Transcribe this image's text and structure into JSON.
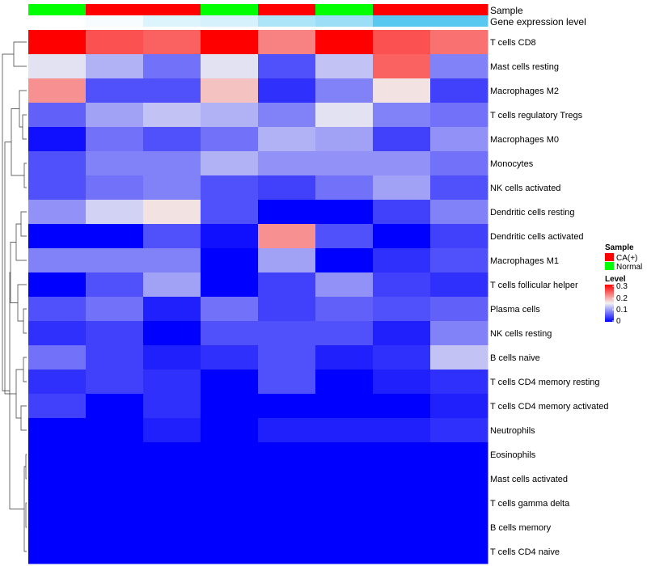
{
  "chart_data": {
    "type": "heatmap",
    "title": "",
    "columns": 8,
    "rows": [
      "T cells CD8",
      "Mast cells resting",
      "Macrophages M2",
      "T cells regulatory  Tregs",
      "Macrophages M0",
      "Monocytes",
      "NK cells activated",
      "Dendritic cells resting",
      "Dendritic cells activated",
      "Macrophages M1",
      "T cells follicular helper",
      "Plasma cells",
      "NK cells resting",
      "B cells naive",
      "T cells CD4 memory resting",
      "T cells CD4 memory activated",
      "Neutrophils",
      "Eosinophils",
      "Mast cells activated",
      "T cells gamma delta",
      "B cells memory",
      "T cells CD4 naive"
    ],
    "values": [
      [
        0.3,
        0.25,
        0.24,
        0.3,
        0.22,
        0.3,
        0.25,
        0.23
      ],
      [
        0.14,
        0.11,
        0.07,
        0.14,
        0.05,
        0.12,
        0.24,
        0.08
      ],
      [
        0.21,
        0.05,
        0.05,
        0.18,
        0.03,
        0.08,
        0.16,
        0.04
      ],
      [
        0.06,
        0.1,
        0.12,
        0.11,
        0.08,
        0.14,
        0.08,
        0.07
      ],
      [
        0.01,
        0.07,
        0.05,
        0.07,
        0.11,
        0.1,
        0.04,
        0.09
      ],
      [
        0.05,
        0.08,
        0.08,
        0.11,
        0.09,
        0.09,
        0.09,
        0.07
      ],
      [
        0.05,
        0.07,
        0.08,
        0.05,
        0.04,
        0.07,
        0.1,
        0.05
      ],
      [
        0.09,
        0.13,
        0.16,
        0.05,
        0.0,
        0.0,
        0.04,
        0.08
      ],
      [
        0.0,
        0.0,
        0.05,
        0.01,
        0.21,
        0.05,
        0.0,
        0.04
      ],
      [
        0.08,
        0.08,
        0.08,
        0.0,
        0.1,
        0.0,
        0.03,
        0.05
      ],
      [
        0.0,
        0.05,
        0.1,
        0.0,
        0.04,
        0.09,
        0.04,
        0.03
      ],
      [
        0.05,
        0.07,
        0.02,
        0.07,
        0.04,
        0.06,
        0.05,
        0.06
      ],
      [
        0.03,
        0.04,
        0.0,
        0.05,
        0.05,
        0.05,
        0.02,
        0.08
      ],
      [
        0.07,
        0.04,
        0.02,
        0.03,
        0.05,
        0.02,
        0.03,
        0.12
      ],
      [
        0.03,
        0.04,
        0.03,
        0.0,
        0.05,
        0.0,
        0.02,
        0.03
      ],
      [
        0.04,
        0.0,
        0.03,
        0.0,
        0.0,
        0.0,
        0.0,
        0.02
      ],
      [
        0.0,
        0.0,
        0.02,
        0.0,
        0.02,
        0.02,
        0.02,
        0.03
      ],
      [
        0.0,
        0.0,
        0.0,
        0.0,
        0.0,
        0.0,
        0.0,
        0.0
      ],
      [
        0.0,
        0.0,
        0.0,
        0.0,
        0.0,
        0.0,
        0.0,
        0.0
      ],
      [
        0.0,
        0.0,
        0.0,
        0.0,
        0.0,
        0.0,
        0.0,
        0.0
      ],
      [
        0.0,
        0.0,
        0.0,
        0.0,
        0.0,
        0.0,
        0.0,
        0.0
      ],
      [
        0.0,
        0.0,
        0.0,
        0.0,
        0.0,
        0.0,
        0.0,
        0.0
      ]
    ],
    "annotations": {
      "sample": {
        "label": "Sample",
        "values": [
          "Normal",
          "CA(+)",
          "CA(+)",
          "Normal",
          "CA(+)",
          "Normal",
          "CA(+)",
          "CA(+)"
        ]
      },
      "expression": {
        "label": "Gene expression level",
        "values": [
          0.0,
          0.05,
          0.2,
          0.25,
          0.5,
          0.6,
          1.0,
          1.0
        ]
      }
    },
    "color_scale": {
      "low": "#0000ff",
      "mid": "#f2f2f2",
      "high": "#ff0000",
      "range": [
        0,
        0.3
      ],
      "midpoint": 0.15
    },
    "legend": {
      "sample_title": "Sample",
      "sample_entries": [
        {
          "name": "CA(+)",
          "color": "#ff0000"
        },
        {
          "name": "Normal",
          "color": "#00ff00"
        }
      ],
      "level_title": "Level",
      "level_ticks": [
        "0.3",
        "0.2",
        "0.1",
        "0"
      ],
      "placement": "right"
    },
    "dendrogram": "rows"
  }
}
